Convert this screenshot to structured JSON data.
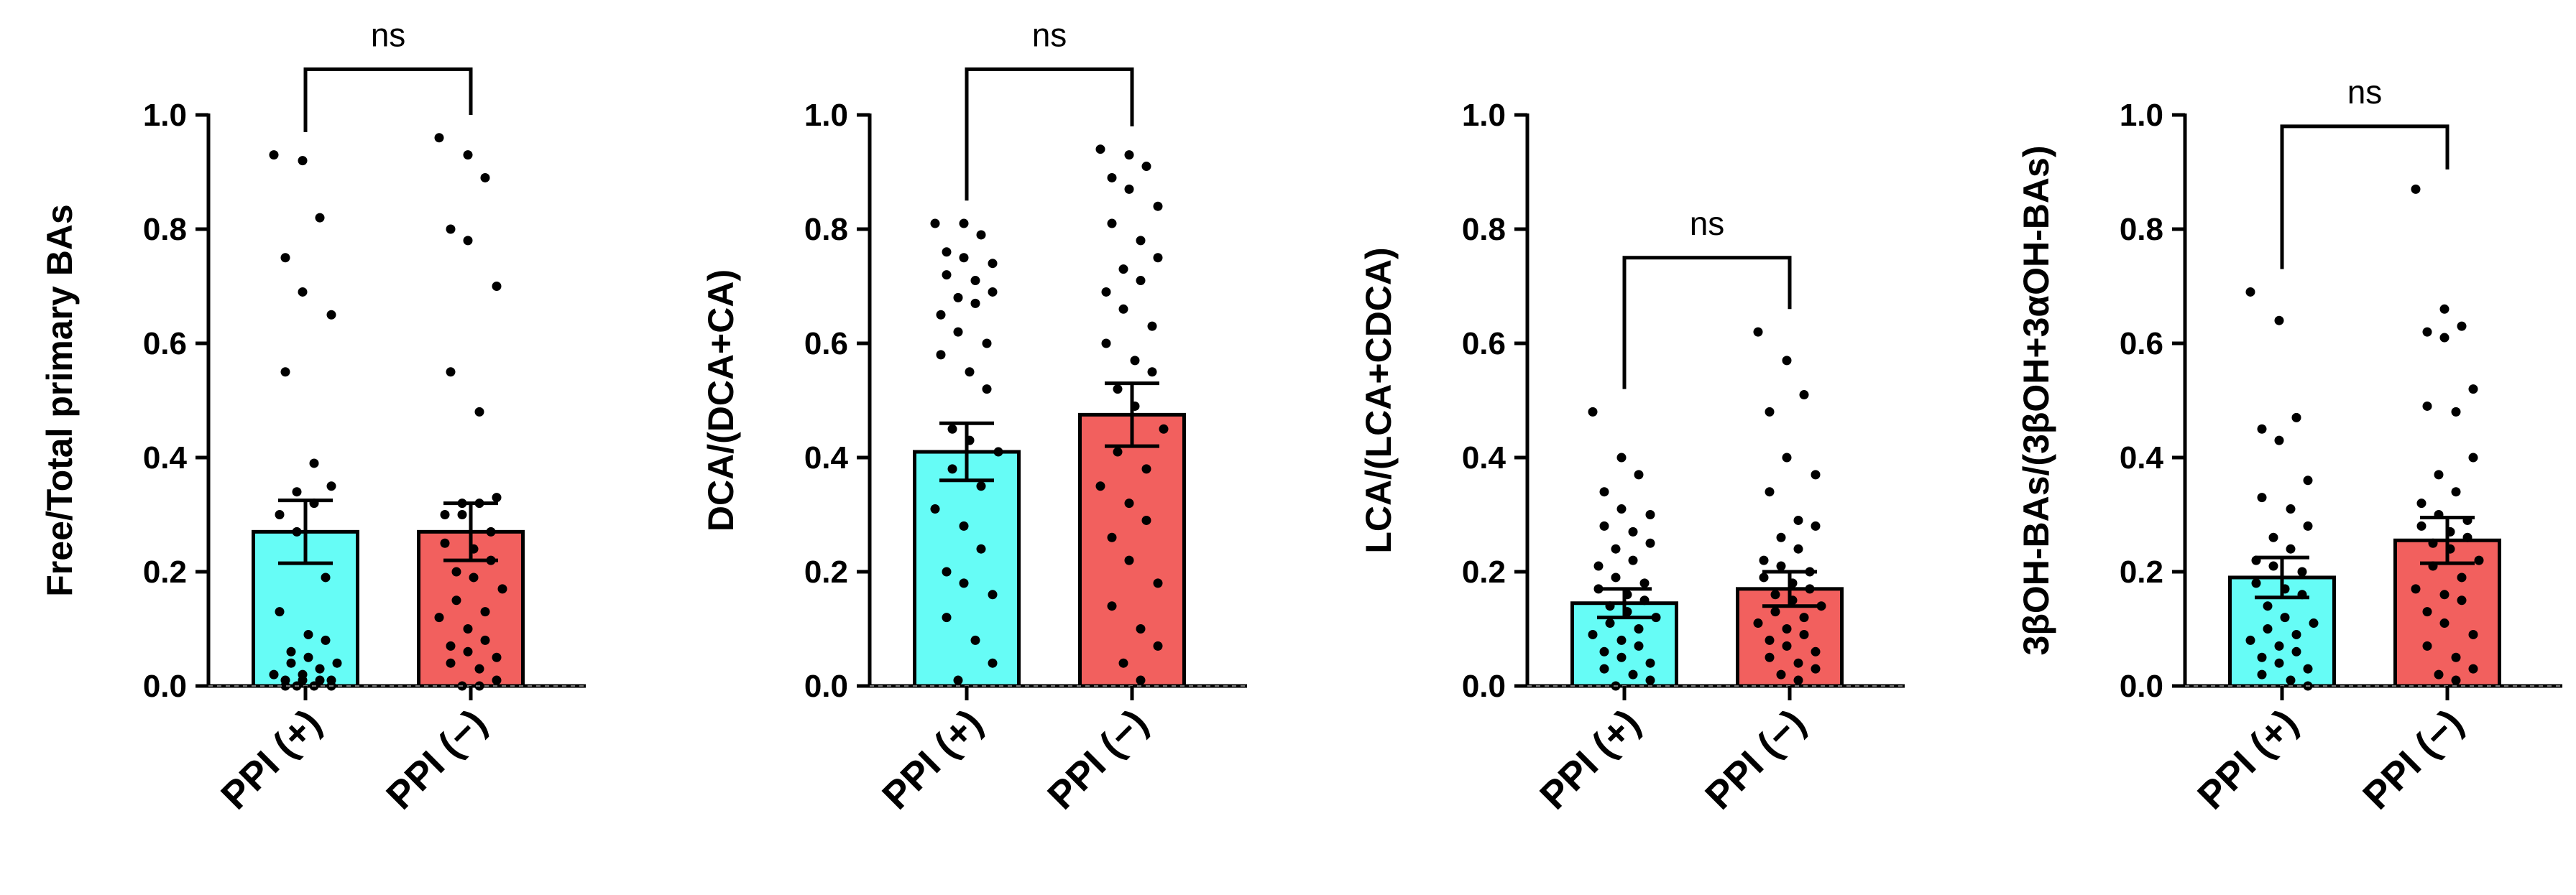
{
  "colors": {
    "group1": "#66fcf6",
    "group2": "#f2605e",
    "axis": "#000000",
    "point": "#000000"
  },
  "chart_data": [
    {
      "type": "bar",
      "title": "",
      "xlabel": "",
      "ylabel": "Free/Total primary BAs",
      "ylim": [
        0,
        1.0
      ],
      "yticks": [
        "0.0",
        "0.2",
        "0.4",
        "0.6",
        "0.8",
        "1.0"
      ],
      "categories": [
        "PPI (+)",
        "PPI (−)"
      ],
      "significance": "ns",
      "bracket_y": 1.08,
      "series": [
        {
          "name": "PPI (+)",
          "mean": 0.27,
          "sem": 0.055,
          "color_key": "group1",
          "points": [
            0.93,
            0.92,
            0.82,
            0.75,
            0.69,
            0.65,
            0.55,
            0.39,
            0.35,
            0.34,
            0.32,
            0.3,
            0.27,
            0.19,
            0.13,
            0.09,
            0.08,
            0.06,
            0.05,
            0.04,
            0.04,
            0.03,
            0.02,
            0.02,
            0.01,
            0.01,
            0.01,
            0.01,
            0.0,
            0.0,
            0.0,
            0.0
          ]
        },
        {
          "name": "PPI (−)",
          "mean": 0.27,
          "sem": 0.05,
          "color_key": "group2",
          "points": [
            0.96,
            0.93,
            0.89,
            0.8,
            0.78,
            0.7,
            0.55,
            0.48,
            0.33,
            0.32,
            0.32,
            0.3,
            0.3,
            0.27,
            0.25,
            0.24,
            0.22,
            0.2,
            0.19,
            0.17,
            0.15,
            0.13,
            0.12,
            0.1,
            0.08,
            0.07,
            0.06,
            0.05,
            0.04,
            0.03,
            0.01,
            0.0,
            0.0
          ]
        }
      ]
    },
    {
      "type": "bar",
      "title": "",
      "xlabel": "",
      "ylabel": "DCA/(DCA+CA)",
      "ylim": [
        0,
        1.0
      ],
      "yticks": [
        "0.0",
        "0.2",
        "0.4",
        "0.6",
        "0.8",
        "1.0"
      ],
      "categories": [
        "PPI (+)",
        "PPI (−)"
      ],
      "significance": "ns",
      "bracket_y": 1.08,
      "series": [
        {
          "name": "PPI (+)",
          "mean": 0.41,
          "sem": 0.05,
          "color_key": "group1",
          "points": [
            0.81,
            0.81,
            0.79,
            0.76,
            0.75,
            0.74,
            0.72,
            0.71,
            0.69,
            0.68,
            0.67,
            0.65,
            0.62,
            0.6,
            0.58,
            0.55,
            0.52,
            0.45,
            0.43,
            0.41,
            0.38,
            0.35,
            0.31,
            0.28,
            0.24,
            0.2,
            0.18,
            0.16,
            0.12,
            0.08,
            0.04,
            0.01
          ]
        },
        {
          "name": "PPI (−)",
          "mean": 0.475,
          "sem": 0.055,
          "color_key": "group2",
          "points": [
            0.94,
            0.93,
            0.91,
            0.89,
            0.87,
            0.84,
            0.81,
            0.78,
            0.75,
            0.73,
            0.71,
            0.69,
            0.66,
            0.63,
            0.6,
            0.57,
            0.55,
            0.52,
            0.49,
            0.45,
            0.41,
            0.38,
            0.35,
            0.32,
            0.29,
            0.26,
            0.22,
            0.18,
            0.14,
            0.1,
            0.07,
            0.04,
            0.01
          ]
        }
      ]
    },
    {
      "type": "bar",
      "title": "",
      "xlabel": "",
      "ylabel": "LCA/(LCA+CDCA)",
      "ylim": [
        0,
        1.0
      ],
      "yticks": [
        "0.0",
        "0.2",
        "0.4",
        "0.6",
        "0.8",
        "1.0"
      ],
      "categories": [
        "PPI (+)",
        "PPI (−)"
      ],
      "significance": "ns",
      "bracket_y": 0.75,
      "series": [
        {
          "name": "PPI (+)",
          "mean": 0.145,
          "sem": 0.025,
          "color_key": "group1",
          "points": [
            0.48,
            0.4,
            0.37,
            0.34,
            0.31,
            0.3,
            0.28,
            0.27,
            0.25,
            0.24,
            0.22,
            0.21,
            0.19,
            0.18,
            0.17,
            0.16,
            0.15,
            0.14,
            0.13,
            0.12,
            0.11,
            0.1,
            0.09,
            0.08,
            0.07,
            0.06,
            0.05,
            0.04,
            0.03,
            0.02,
            0.01,
            0.0
          ]
        },
        {
          "name": "PPI (−)",
          "mean": 0.17,
          "sem": 0.03,
          "color_key": "group2",
          "points": [
            0.62,
            0.57,
            0.51,
            0.48,
            0.4,
            0.37,
            0.34,
            0.29,
            0.28,
            0.26,
            0.24,
            0.22,
            0.21,
            0.2,
            0.19,
            0.18,
            0.17,
            0.16,
            0.15,
            0.14,
            0.13,
            0.12,
            0.11,
            0.1,
            0.09,
            0.08,
            0.07,
            0.06,
            0.05,
            0.04,
            0.03,
            0.02,
            0.01
          ]
        }
      ]
    },
    {
      "type": "bar",
      "title": "",
      "xlabel": "",
      "ylabel": "3βOH-BAs/(3βOH+3αOH-BAs)",
      "ylim": [
        0,
        1.0
      ],
      "yticks": [
        "0.0",
        "0.2",
        "0.4",
        "0.6",
        "0.8",
        "1.0"
      ],
      "categories": [
        "PPI (+)",
        "PPI (−)"
      ],
      "significance": "ns",
      "bracket_y": 0.98,
      "series": [
        {
          "name": "PPI (+)",
          "mean": 0.19,
          "sem": 0.035,
          "color_key": "group1",
          "points": [
            0.69,
            0.64,
            0.47,
            0.45,
            0.43,
            0.36,
            0.33,
            0.31,
            0.28,
            0.26,
            0.24,
            0.22,
            0.21,
            0.2,
            0.18,
            0.17,
            0.16,
            0.14,
            0.12,
            0.11,
            0.1,
            0.09,
            0.08,
            0.07,
            0.06,
            0.05,
            0.04,
            0.03,
            0.02,
            0.01,
            0.0
          ]
        },
        {
          "name": "PPI (−)",
          "mean": 0.255,
          "sem": 0.04,
          "color_key": "group2",
          "points": [
            0.87,
            0.66,
            0.63,
            0.62,
            0.61,
            0.52,
            0.49,
            0.48,
            0.4,
            0.37,
            0.34,
            0.32,
            0.3,
            0.29,
            0.28,
            0.27,
            0.26,
            0.25,
            0.24,
            0.22,
            0.21,
            0.19,
            0.17,
            0.16,
            0.15,
            0.13,
            0.11,
            0.09,
            0.07,
            0.05,
            0.03,
            0.02,
            0.01
          ]
        }
      ]
    }
  ]
}
